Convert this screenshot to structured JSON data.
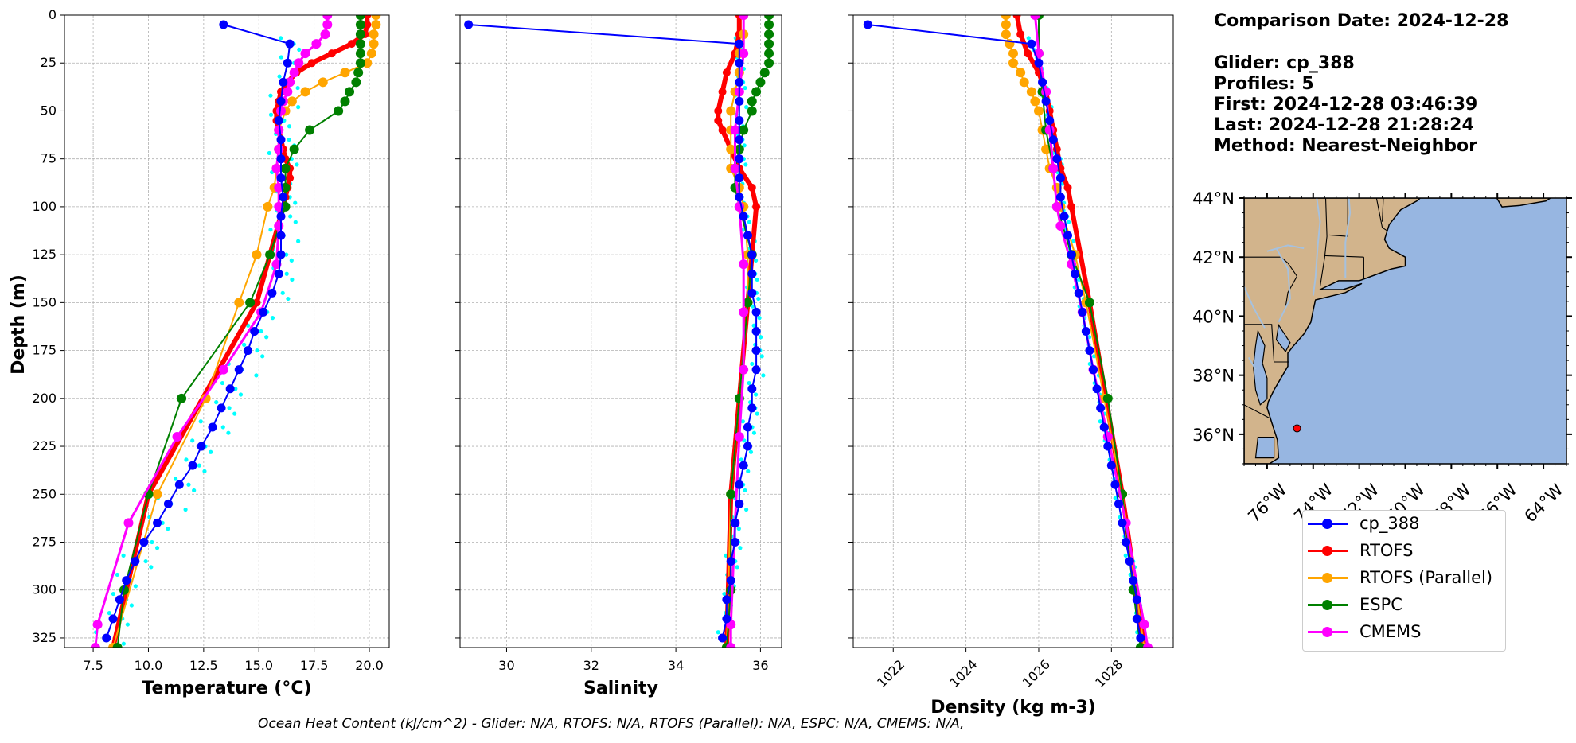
{
  "info": {
    "comparison_date": "Comparison Date: 2024-12-28",
    "glider": "Glider: cp_388",
    "profiles": "Profiles: 5",
    "first": "First: 2024-12-28 03:46:39",
    "last": "Last: 2024-12-28 21:28:24",
    "method": "Method: Nearest-Neighbor"
  },
  "footer": "Ocean Heat Content (kJ/cm^2) - Glider: N/A,  RTOFS: N/A,  RTOFS (Parallel): N/A,  ESPC: N/A,  CMEMS: N/A,",
  "colors": {
    "glider": "#0000ff",
    "glider_raw": "#00ffff",
    "rtofs": "#ff0000",
    "rtofs_parallel": "#ffa500",
    "espc": "#008000",
    "cmems": "#ff00ff",
    "land": "#d2b48c",
    "ocean": "#97b6e1",
    "river": "#a6c1de",
    "marker": "#ff0000"
  },
  "legend": [
    {
      "label": "cp_388",
      "color": "#0000ff"
    },
    {
      "label": "RTOFS",
      "color": "#ff0000"
    },
    {
      "label": "RTOFS (Parallel)",
      "color": "#ffa500"
    },
    {
      "label": "ESPC",
      "color": "#008000"
    },
    {
      "label": "CMEMS",
      "color": "#ff00ff"
    }
  ],
  "chart_data": [
    {
      "type": "line",
      "xlabel": "Temperature (°C)",
      "ylabel": "Depth (m)",
      "xlim": [
        6.2,
        20.9
      ],
      "ylim": [
        330,
        0
      ],
      "xticks": [
        7.5,
        10.0,
        12.5,
        15.0,
        17.5,
        20.0
      ],
      "xtick_labels": [
        "7.5",
        "10.0",
        "12.5",
        "15.0",
        "17.5",
        "20.0"
      ],
      "yticks": [
        0,
        25,
        50,
        75,
        100,
        125,
        150,
        175,
        200,
        225,
        250,
        275,
        300,
        325
      ],
      "ytick_labels": [
        "0",
        "25",
        "50",
        "75",
        "100",
        "125",
        "150",
        "175",
        "200",
        "225",
        "250",
        "275",
        "300",
        "325"
      ],
      "grid": true,
      "series": [
        {
          "name": "cp_388",
          "depth": [
            5,
            15,
            25,
            35,
            45,
            55,
            65,
            75,
            85,
            95,
            105,
            115,
            125,
            135,
            145,
            155,
            165,
            175,
            185,
            195,
            205,
            215,
            225,
            235,
            245,
            255,
            265,
            275,
            285,
            295,
            305,
            315,
            325
          ],
          "values": [
            13.4,
            16.4,
            16.3,
            16.1,
            16.0,
            15.9,
            16.0,
            16.0,
            16.0,
            16.1,
            16.0,
            16.0,
            16.0,
            15.9,
            15.6,
            15.2,
            14.8,
            14.5,
            14.1,
            13.7,
            13.3,
            12.9,
            12.4,
            12.0,
            11.4,
            10.9,
            10.4,
            9.8,
            9.4,
            9.0,
            8.7,
            8.4,
            8.1
          ]
        },
        {
          "name": "RTOFS",
          "depth": [
            0,
            5,
            10,
            15,
            20,
            25,
            30,
            35,
            40,
            45,
            50,
            55,
            60,
            65,
            70,
            75,
            80,
            85,
            90,
            95,
            100,
            150,
            250,
            330
          ],
          "values": [
            19.9,
            19.9,
            19.8,
            19.2,
            18.3,
            17.4,
            16.7,
            16.3,
            16.0,
            15.9,
            15.8,
            15.8,
            15.9,
            16.0,
            16.1,
            16.2,
            16.4,
            16.4,
            16.3,
            16.2,
            16.1,
            14.9,
            10.0,
            8.4
          ]
        },
        {
          "name": "RTOFS (Parallel)",
          "depth": [
            0,
            5,
            10,
            15,
            20,
            25,
            30,
            35,
            40,
            45,
            50,
            60,
            70,
            80,
            90,
            100,
            125,
            150,
            200,
            250,
            330
          ],
          "values": [
            20.3,
            20.3,
            20.2,
            20.2,
            20.1,
            19.9,
            18.9,
            17.9,
            17.1,
            16.5,
            16.2,
            15.9,
            15.9,
            15.8,
            15.7,
            15.4,
            14.9,
            14.1,
            12.6,
            10.4,
            8.4
          ]
        },
        {
          "name": "ESPC",
          "depth": [
            0,
            5,
            10,
            15,
            20,
            25,
            30,
            35,
            40,
            45,
            50,
            60,
            70,
            80,
            90,
            100,
            125,
            150,
            200,
            250,
            300,
            330
          ],
          "values": [
            19.6,
            19.6,
            19.6,
            19.6,
            19.6,
            19.6,
            19.5,
            19.4,
            19.1,
            18.9,
            18.6,
            17.3,
            16.6,
            16.2,
            16.2,
            16.2,
            15.5,
            14.6,
            11.5,
            10.0,
            8.9,
            8.6
          ]
        },
        {
          "name": "CMEMS",
          "depth": [
            0,
            5,
            10,
            15,
            20,
            25,
            30,
            35,
            40,
            45,
            50,
            60,
            70,
            80,
            90,
            100,
            110,
            130,
            155,
            185,
            220,
            265,
            318,
            330
          ],
          "values": [
            18.1,
            18.1,
            18.0,
            17.6,
            17.1,
            16.8,
            16.6,
            16.4,
            16.3,
            16.1,
            16.0,
            15.9,
            15.9,
            15.8,
            15.9,
            15.9,
            15.9,
            15.8,
            15.1,
            13.4,
            11.3,
            9.1,
            7.7,
            7.6
          ]
        }
      ]
    },
    {
      "type": "line",
      "xlabel": "Salinity",
      "xlim": [
        28.9,
        36.5
      ],
      "ylim": [
        330,
        0
      ],
      "xticks": [
        30,
        32,
        34,
        36
      ],
      "xtick_labels": [
        "30",
        "32",
        "34",
        "36"
      ],
      "yticks": [
        0,
        25,
        50,
        75,
        100,
        125,
        150,
        175,
        200,
        225,
        250,
        275,
        300,
        325
      ],
      "grid": true,
      "series": [
        {
          "name": "cp_388",
          "depth": [
            5,
            15,
            25,
            35,
            45,
            55,
            65,
            75,
            85,
            95,
            105,
            115,
            125,
            135,
            145,
            155,
            165,
            175,
            185,
            195,
            205,
            215,
            225,
            235,
            245,
            255,
            265,
            275,
            285,
            295,
            305,
            315,
            325
          ],
          "values": [
            29.1,
            35.5,
            35.5,
            35.5,
            35.5,
            35.5,
            35.5,
            35.5,
            35.5,
            35.5,
            35.6,
            35.7,
            35.8,
            35.8,
            35.8,
            35.9,
            35.9,
            35.9,
            35.9,
            35.8,
            35.8,
            35.7,
            35.7,
            35.6,
            35.5,
            35.5,
            35.4,
            35.4,
            35.3,
            35.3,
            35.2,
            35.2,
            35.1
          ]
        },
        {
          "name": "RTOFS",
          "depth": [
            0,
            10,
            20,
            30,
            40,
            50,
            55,
            60,
            70,
            80,
            90,
            100,
            150,
            250,
            330
          ],
          "values": [
            35.5,
            35.5,
            35.4,
            35.2,
            35.1,
            35.0,
            35.0,
            35.1,
            35.3,
            35.5,
            35.8,
            35.9,
            35.7,
            35.3,
            35.2
          ]
        },
        {
          "name": "RTOFS (Parallel)",
          "depth": [
            0,
            10,
            20,
            30,
            40,
            50,
            60,
            70,
            80,
            90,
            100,
            125,
            150,
            250,
            330
          ],
          "values": [
            35.6,
            35.6,
            35.5,
            35.5,
            35.4,
            35.3,
            35.3,
            35.3,
            35.3,
            35.5,
            35.6,
            35.7,
            35.7,
            35.3,
            35.2
          ]
        },
        {
          "name": "ESPC",
          "depth": [
            0,
            5,
            10,
            15,
            20,
            25,
            30,
            35,
            40,
            45,
            50,
            60,
            70,
            80,
            90,
            100,
            125,
            150,
            200,
            250,
            300,
            330
          ],
          "values": [
            36.2,
            36.2,
            36.2,
            36.2,
            36.2,
            36.2,
            36.1,
            36.0,
            35.9,
            35.8,
            35.8,
            35.6,
            35.5,
            35.4,
            35.4,
            35.5,
            35.8,
            35.7,
            35.5,
            35.3,
            35.3,
            35.2
          ]
        },
        {
          "name": "CMEMS",
          "depth": [
            0,
            20,
            40,
            60,
            80,
            100,
            130,
            155,
            185,
            220,
            265,
            318,
            330
          ],
          "values": [
            35.6,
            35.6,
            35.5,
            35.4,
            35.4,
            35.5,
            35.6,
            35.6,
            35.6,
            35.5,
            35.4,
            35.3,
            35.3
          ]
        }
      ]
    },
    {
      "type": "line",
      "xlabel": "Density (kg m-3)",
      "xlim": [
        1020.9,
        1029.7
      ],
      "ylim": [
        330,
        0
      ],
      "xticks": [
        1022,
        1024,
        1026,
        1028
      ],
      "xtick_labels": [
        "1022",
        "1024",
        "1026",
        "1028"
      ],
      "yticks": [
        0,
        25,
        50,
        75,
        100,
        125,
        150,
        175,
        200,
        225,
        250,
        275,
        300,
        325
      ],
      "grid": true,
      "series": [
        {
          "name": "cp_388",
          "depth": [
            5,
            15,
            25,
            35,
            45,
            55,
            65,
            75,
            85,
            95,
            105,
            115,
            125,
            135,
            145,
            155,
            165,
            175,
            185,
            195,
            205,
            215,
            225,
            235,
            245,
            255,
            265,
            275,
            285,
            295,
            305,
            315,
            325
          ],
          "values": [
            1021.3,
            1025.8,
            1026.0,
            1026.1,
            1026.2,
            1026.3,
            1026.4,
            1026.5,
            1026.6,
            1026.6,
            1026.7,
            1026.8,
            1026.9,
            1027.0,
            1027.1,
            1027.2,
            1027.3,
            1027.4,
            1027.5,
            1027.6,
            1027.7,
            1027.8,
            1027.9,
            1028.0,
            1028.1,
            1028.2,
            1028.3,
            1028.4,
            1028.5,
            1028.6,
            1028.7,
            1028.7,
            1028.8
          ]
        },
        {
          "name": "RTOFS",
          "depth": [
            0,
            10,
            20,
            30,
            40,
            50,
            60,
            70,
            80,
            90,
            100,
            150,
            250,
            330
          ],
          "values": [
            1025.4,
            1025.5,
            1025.7,
            1026.0,
            1026.2,
            1026.3,
            1026.4,
            1026.5,
            1026.6,
            1026.8,
            1026.9,
            1027.4,
            1028.3,
            1028.9
          ]
        },
        {
          "name": "RTOFS (Parallel)",
          "depth": [
            0,
            5,
            10,
            15,
            20,
            25,
            30,
            35,
            40,
            45,
            50,
            60,
            70,
            80,
            90,
            100,
            125,
            150,
            200,
            250,
            330
          ],
          "values": [
            1025.1,
            1025.1,
            1025.1,
            1025.2,
            1025.3,
            1025.3,
            1025.5,
            1025.6,
            1025.8,
            1025.9,
            1026.0,
            1026.1,
            1026.2,
            1026.3,
            1026.5,
            1026.6,
            1027.0,
            1027.3,
            1027.8,
            1028.3,
            1028.9
          ]
        },
        {
          "name": "ESPC",
          "depth": [
            0,
            20,
            40,
            60,
            80,
            100,
            125,
            150,
            200,
            250,
            300,
            330
          ],
          "values": [
            1026.0,
            1026.0,
            1026.1,
            1026.2,
            1026.4,
            1026.5,
            1026.9,
            1027.4,
            1027.9,
            1028.3,
            1028.6,
            1028.8
          ]
        },
        {
          "name": "CMEMS",
          "depth": [
            0,
            20,
            40,
            60,
            80,
            100,
            110,
            130,
            155,
            185,
            220,
            265,
            318,
            330
          ],
          "values": [
            1025.9,
            1026.0,
            1026.2,
            1026.3,
            1026.4,
            1026.5,
            1026.6,
            1026.9,
            1027.2,
            1027.5,
            1027.9,
            1028.4,
            1028.9,
            1029.0
          ]
        }
      ]
    }
  ],
  "map": {
    "lon_range": [
      -77,
      -63
    ],
    "lat_range": [
      35,
      44
    ],
    "lon_labels": [
      "76°W",
      "74°W",
      "72°W",
      "70°W",
      "68°W",
      "66°W",
      "64°W"
    ],
    "lon_values": [
      -76,
      -74,
      -72,
      -70,
      -68,
      -66,
      -64
    ],
    "lat_labels": [
      "44°N",
      "42°N",
      "40°N",
      "38°N",
      "36°N"
    ],
    "lat_values": [
      44,
      42,
      40,
      38,
      36
    ],
    "marker": {
      "lon": -74.7,
      "lat": 36.2
    }
  }
}
